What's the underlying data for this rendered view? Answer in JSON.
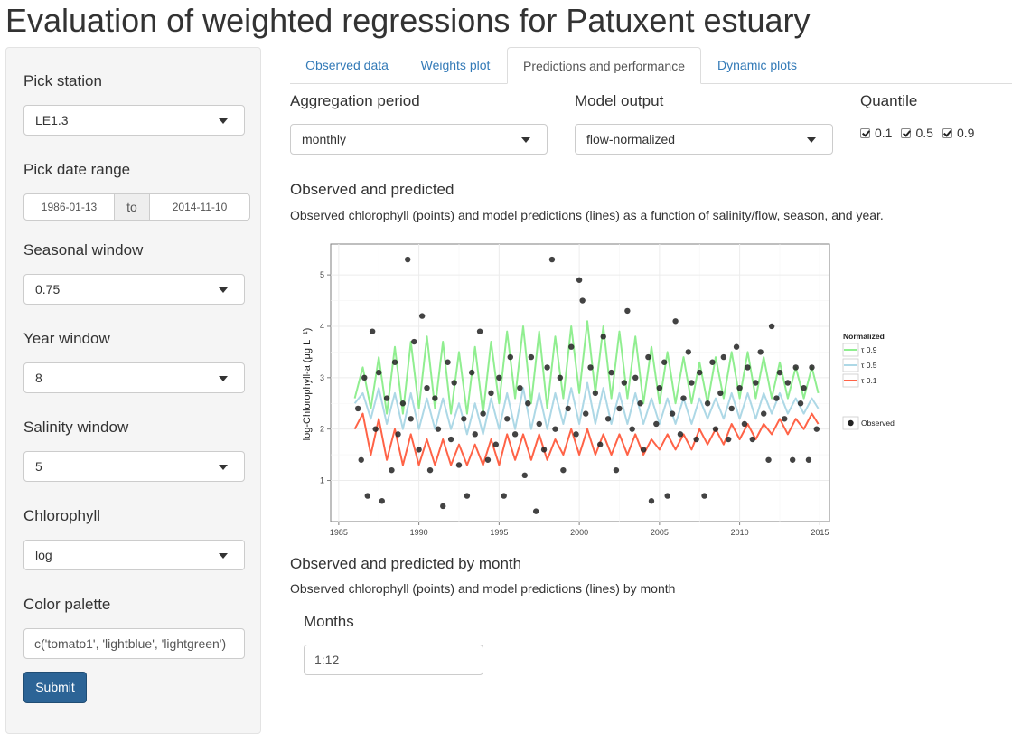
{
  "page_title": "Evaluation of weighted regressions for Patuxent estuary",
  "sidebar": {
    "station": {
      "label": "Pick station",
      "value": "LE1.3"
    },
    "date_range": {
      "label": "Pick date range",
      "start": "1986-01-13",
      "separator": "to",
      "end": "2014-11-10"
    },
    "seasonal_window": {
      "label": "Seasonal window",
      "value": "0.75"
    },
    "year_window": {
      "label": "Year window",
      "value": "8"
    },
    "salinity_window": {
      "label": "Salinity window",
      "value": "5"
    },
    "chlorophyll": {
      "label": "Chlorophyll",
      "value": "log"
    },
    "color_palette": {
      "label": "Color palette",
      "value": "c('tomato1', 'lightblue', 'lightgreen')"
    },
    "submit_label": "Submit"
  },
  "tabs": [
    {
      "label": "Observed data",
      "active": false
    },
    {
      "label": "Weights plot",
      "active": false
    },
    {
      "label": "Predictions and performance",
      "active": true
    },
    {
      "label": "Dynamic plots",
      "active": false
    }
  ],
  "controls": {
    "aggregation": {
      "label": "Aggregation period",
      "value": "monthly"
    },
    "model_output": {
      "label": "Model output",
      "value": "flow-normalized"
    },
    "quantile": {
      "label": "Quantile",
      "options": [
        {
          "label": "0.1",
          "checked": true
        },
        {
          "label": "0.5",
          "checked": true
        },
        {
          "label": "0.9",
          "checked": true
        }
      ]
    }
  },
  "section1": {
    "title": "Observed and predicted",
    "description": "Observed chlorophyll (points) and model predictions (lines) as a function of salinity/flow, season, and year."
  },
  "section2": {
    "title": "Observed and predicted by month",
    "description": "Observed chlorophyll (points) and model predictions (lines) by month",
    "months_label": "Months",
    "months_value": "1:12"
  },
  "chart_data": {
    "type": "line",
    "title": "",
    "xlabel": "",
    "ylabel": "log-Chlorophyll-a (μg L⁻¹)",
    "xlim": [
      1984.5,
      2015.6
    ],
    "ylim": [
      0.2,
      5.6
    ],
    "x_ticks": [
      1985,
      1990,
      1995,
      2000,
      2005,
      2010,
      2015
    ],
    "y_ticks": [
      1,
      2,
      3,
      4,
      5
    ],
    "grid": true,
    "legend": {
      "title": "Normalized",
      "placement": "right",
      "observed_label": "Observed"
    },
    "series": [
      {
        "name": "τ 0.9",
        "color": "#90ee90",
        "x": [
          1986.0,
          1986.5,
          1987.0,
          1987.5,
          1988.0,
          1988.5,
          1989.0,
          1989.5,
          1990.0,
          1990.5,
          1991.0,
          1991.5,
          1992.0,
          1992.5,
          1993.0,
          1993.5,
          1994.0,
          1994.5,
          1995.0,
          1995.5,
          1996.0,
          1996.5,
          1997.0,
          1997.5,
          1998.0,
          1998.5,
          1999.0,
          1999.5,
          2000.0,
          2000.5,
          2001.0,
          2001.5,
          2002.0,
          2002.5,
          2003.0,
          2003.5,
          2004.0,
          2004.5,
          2005.0,
          2005.5,
          2006.0,
          2006.5,
          2007.0,
          2007.5,
          2008.0,
          2008.5,
          2009.0,
          2009.5,
          2010.0,
          2010.5,
          2011.0,
          2011.5,
          2012.0,
          2012.5,
          2013.0,
          2013.5,
          2014.0,
          2014.5,
          2014.9
        ],
        "y": [
          2.6,
          3.2,
          2.4,
          3.4,
          2.3,
          3.6,
          2.3,
          3.7,
          2.4,
          3.8,
          2.4,
          3.7,
          2.3,
          3.5,
          2.3,
          3.6,
          2.3,
          3.7,
          2.5,
          3.9,
          2.6,
          4.0,
          2.5,
          3.9,
          2.4,
          3.8,
          2.6,
          4.0,
          2.7,
          4.1,
          2.7,
          4.0,
          2.6,
          3.9,
          2.6,
          3.8,
          2.5,
          3.6,
          2.5,
          3.5,
          2.5,
          3.4,
          2.5,
          3.3,
          2.5,
          3.4,
          2.6,
          3.5,
          2.6,
          3.5,
          2.6,
          3.4,
          2.6,
          3.3,
          2.6,
          3.2,
          2.6,
          3.2,
          2.7
        ]
      },
      {
        "name": "τ 0.5",
        "color": "#add8e6",
        "x": [
          1986.0,
          1986.5,
          1987.0,
          1987.5,
          1988.0,
          1988.5,
          1989.0,
          1989.5,
          1990.0,
          1990.5,
          1991.0,
          1991.5,
          1992.0,
          1992.5,
          1993.0,
          1993.5,
          1994.0,
          1994.5,
          1995.0,
          1995.5,
          1996.0,
          1996.5,
          1997.0,
          1997.5,
          1998.0,
          1998.5,
          1999.0,
          1999.5,
          2000.0,
          2000.5,
          2001.0,
          2001.5,
          2002.0,
          2002.5,
          2003.0,
          2003.5,
          2004.0,
          2004.5,
          2005.0,
          2005.5,
          2006.0,
          2006.5,
          2007.0,
          2007.5,
          2008.0,
          2008.5,
          2009.0,
          2009.5,
          2010.0,
          2010.5,
          2011.0,
          2011.5,
          2012.0,
          2012.5,
          2013.0,
          2013.5,
          2014.0,
          2014.5,
          2014.9
        ],
        "y": [
          2.5,
          2.7,
          2.2,
          2.8,
          2.1,
          2.7,
          2.0,
          2.7,
          2.0,
          2.6,
          2.0,
          2.6,
          2.0,
          2.5,
          1.9,
          2.5,
          1.9,
          2.6,
          2.0,
          2.7,
          2.0,
          2.8,
          2.0,
          2.7,
          2.0,
          2.7,
          2.1,
          2.8,
          2.1,
          2.9,
          2.1,
          2.8,
          2.1,
          2.7,
          2.1,
          2.7,
          2.1,
          2.6,
          2.1,
          2.6,
          2.1,
          2.6,
          2.1,
          2.6,
          2.2,
          2.6,
          2.2,
          2.7,
          2.2,
          2.7,
          2.2,
          2.7,
          2.3,
          2.7,
          2.3,
          2.6,
          2.3,
          2.6,
          2.4
        ]
      },
      {
        "name": "τ 0.1",
        "color": "#ff6347",
        "x": [
          1986.0,
          1986.5,
          1987.0,
          1987.5,
          1988.0,
          1988.5,
          1989.0,
          1989.5,
          1990.0,
          1990.5,
          1991.0,
          1991.5,
          1992.0,
          1992.5,
          1993.0,
          1993.5,
          1994.0,
          1994.5,
          1995.0,
          1995.5,
          1996.0,
          1996.5,
          1997.0,
          1997.5,
          1998.0,
          1998.5,
          1999.0,
          1999.5,
          2000.0,
          2000.5,
          2001.0,
          2001.5,
          2002.0,
          2002.5,
          2003.0,
          2003.5,
          2004.0,
          2004.5,
          2005.0,
          2005.5,
          2006.0,
          2006.5,
          2007.0,
          2007.5,
          2008.0,
          2008.5,
          2009.0,
          2009.5,
          2010.0,
          2010.5,
          2011.0,
          2011.5,
          2012.0,
          2012.5,
          2013.0,
          2013.5,
          2014.0,
          2014.5,
          2014.9
        ],
        "y": [
          2.0,
          2.3,
          1.5,
          2.2,
          1.4,
          2.0,
          1.3,
          1.9,
          1.3,
          1.8,
          1.3,
          1.8,
          1.3,
          1.7,
          1.3,
          1.7,
          1.3,
          1.8,
          1.3,
          1.9,
          1.4,
          1.9,
          1.4,
          1.9,
          1.4,
          1.8,
          1.5,
          2.0,
          1.5,
          2.0,
          1.5,
          1.9,
          1.5,
          1.9,
          1.5,
          1.9,
          1.5,
          1.8,
          1.6,
          1.9,
          1.6,
          1.9,
          1.6,
          2.0,
          1.7,
          2.0,
          1.7,
          2.1,
          1.8,
          2.1,
          1.8,
          2.1,
          1.9,
          2.2,
          1.9,
          2.2,
          2.0,
          2.3,
          2.1
        ]
      },
      {
        "name": "Observed",
        "color": "#222222",
        "type": "scatter",
        "x": [
          1986.2,
          1986.4,
          1986.6,
          1986.8,
          1987.1,
          1987.3,
          1987.5,
          1987.7,
          1988.0,
          1988.3,
          1988.5,
          1988.7,
          1989.0,
          1989.3,
          1989.5,
          1989.7,
          1990.0,
          1990.2,
          1990.5,
          1990.7,
          1991.0,
          1991.2,
          1991.5,
          1991.8,
          1992.0,
          1992.2,
          1992.5,
          1992.8,
          1993.0,
          1993.3,
          1993.5,
          1993.8,
          1994.0,
          1994.3,
          1994.5,
          1994.8,
          1995.0,
          1995.3,
          1995.5,
          1995.7,
          1996.0,
          1996.3,
          1996.6,
          1996.8,
          1997.0,
          1997.3,
          1997.5,
          1997.8,
          1998.0,
          1998.3,
          1998.5,
          1998.8,
          1999.0,
          1999.3,
          1999.5,
          1999.8,
          2000.0,
          2000.2,
          2000.4,
          2000.7,
          2001.0,
          2001.3,
          2001.5,
          2001.8,
          2002.0,
          2002.3,
          2002.5,
          2002.8,
          2003.0,
          2003.3,
          2003.5,
          2003.8,
          2004.0,
          2004.3,
          2004.5,
          2004.8,
          2005.0,
          2005.3,
          2005.5,
          2005.8,
          2006.0,
          2006.3,
          2006.5,
          2006.8,
          2007.0,
          2007.3,
          2007.5,
          2007.8,
          2008.0,
          2008.3,
          2008.5,
          2008.8,
          2009.0,
          2009.3,
          2009.5,
          2009.8,
          2010.0,
          2010.3,
          2010.5,
          2010.8,
          2011.0,
          2011.3,
          2011.5,
          2011.8,
          2012.0,
          2012.3,
          2012.5,
          2012.8,
          2013.0,
          2013.3,
          2013.5,
          2013.8,
          2014.0,
          2014.3,
          2014.5,
          2014.8
        ],
        "y": [
          2.4,
          1.4,
          3.0,
          0.7,
          3.9,
          2.0,
          3.1,
          0.6,
          2.6,
          1.2,
          3.3,
          1.9,
          2.5,
          5.3,
          2.2,
          3.7,
          1.6,
          4.2,
          2.8,
          1.2,
          2.6,
          2.0,
          0.5,
          3.3,
          1.8,
          2.9,
          1.3,
          2.2,
          0.7,
          3.1,
          1.9,
          3.9,
          2.3,
          1.4,
          2.7,
          1.7,
          3.0,
          0.7,
          2.2,
          3.4,
          1.9,
          2.8,
          1.1,
          2.5,
          3.4,
          0.4,
          2.1,
          1.6,
          3.2,
          5.3,
          2.0,
          3.0,
          1.2,
          2.4,
          3.6,
          1.9,
          4.9,
          4.5,
          2.3,
          3.2,
          2.7,
          1.7,
          3.8,
          2.2,
          3.1,
          1.2,
          2.4,
          2.9,
          4.3,
          2.0,
          3.0,
          2.5,
          1.6,
          3.4,
          0.6,
          2.1,
          2.8,
          3.3,
          0.7,
          2.3,
          4.1,
          1.9,
          2.6,
          3.5,
          2.9,
          1.8,
          3.1,
          0.7,
          2.5,
          3.3,
          2.0,
          2.7,
          3.4,
          1.8,
          2.4,
          3.6,
          2.8,
          2.1,
          3.2,
          1.8,
          2.9,
          3.5,
          2.3,
          1.4,
          4.0,
          2.6,
          3.1,
          2.2,
          2.9,
          1.4,
          3.2,
          2.5,
          2.8,
          1.4,
          3.2,
          2.0
        ]
      }
    ]
  }
}
